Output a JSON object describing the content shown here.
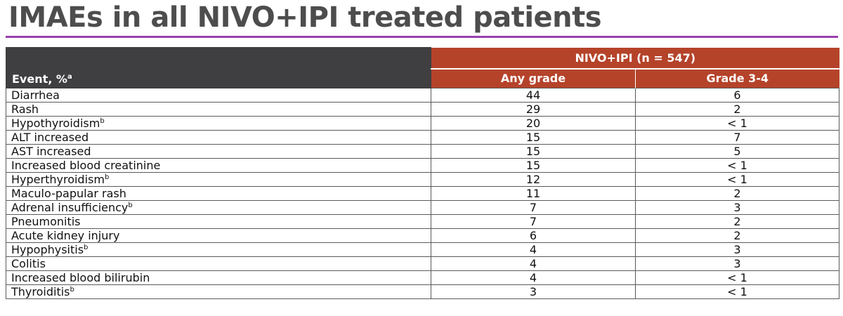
{
  "title": "IMAEs in all NIVO+IPI treated patients",
  "table": {
    "event_header": "Event, %",
    "event_header_sup": "a",
    "group_header": "NIVO+IPI (n = 547)",
    "col_any": "Any grade",
    "col_g34": "Grade 3-4",
    "rows": [
      {
        "event": "Diarrhea",
        "sup": "",
        "any": "44",
        "g34": "6"
      },
      {
        "event": "Rash",
        "sup": "",
        "any": "29",
        "g34": "2"
      },
      {
        "event": "Hypothyroidism",
        "sup": "b",
        "any": "20",
        "g34": "< 1"
      },
      {
        "event": "ALT increased",
        "sup": "",
        "any": "15",
        "g34": "7"
      },
      {
        "event": "AST increased",
        "sup": "",
        "any": "15",
        "g34": "5"
      },
      {
        "event": "Increased blood creatinine",
        "sup": "",
        "any": "15",
        "g34": "< 1"
      },
      {
        "event": "Hyperthyroidism",
        "sup": "b",
        "any": "12",
        "g34": "< 1"
      },
      {
        "event": "Maculo-papular rash",
        "sup": "",
        "any": "11",
        "g34": "2"
      },
      {
        "event": "Adrenal insufficiency",
        "sup": "b",
        "any": "7",
        "g34": "3"
      },
      {
        "event": "Pneumonitis",
        "sup": "",
        "any": "7",
        "g34": "2"
      },
      {
        "event": "Acute kidney injury",
        "sup": "",
        "any": "6",
        "g34": "2"
      },
      {
        "event": "Hypophysitis",
        "sup": "b",
        "any": "4",
        "g34": "3"
      },
      {
        "event": "Colitis",
        "sup": "",
        "any": "4",
        "g34": "3"
      },
      {
        "event": "Increased blood bilirubin",
        "sup": "",
        "any": "4",
        "g34": "< 1"
      },
      {
        "event": "Thyroiditis",
        "sup": "b",
        "any": "3",
        "g34": "< 1"
      }
    ]
  },
  "colors": {
    "title_text": "#4d4d4d",
    "title_rule": "#9b3fae",
    "event_header_bg": "#3f3e40",
    "group_header_bg": "#b5432a"
  }
}
